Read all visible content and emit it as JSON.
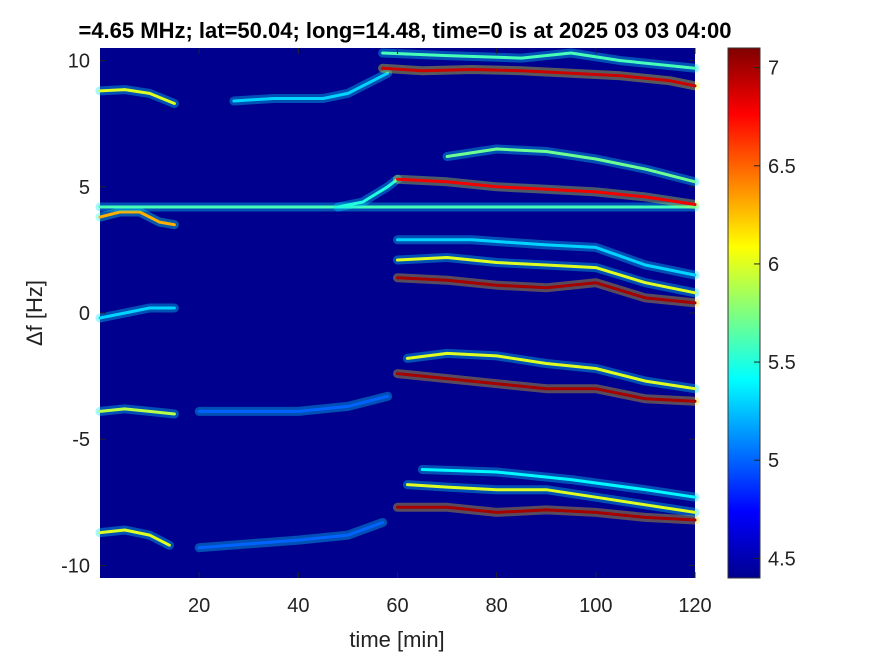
{
  "chart_data": {
    "type": "heatmap",
    "title": "=4.65 MHz;  lat=50.04; long=14.48, time=0 is at 2025 03 03 04:00",
    "xlabel": "time [min]",
    "ylabel": "Δf [Hz]",
    "xlim": [
      0,
      120
    ],
    "ylim": [
      -10.5,
      10.5
    ],
    "xticks": [
      20,
      40,
      60,
      80,
      100,
      120
    ],
    "yticks": [
      -10,
      -5,
      0,
      5,
      10
    ],
    "colorbar": {
      "clim": [
        4.4,
        7.1
      ],
      "ticks": [
        4.5,
        5,
        5.5,
        6,
        6.5,
        7
      ],
      "colormap": "jet"
    },
    "background_level": 4.5,
    "traces": [
      {
        "points": [
          [
            0,
            8.8
          ],
          [
            5,
            8.85
          ],
          [
            10,
            8.7
          ],
          [
            15,
            8.3
          ]
        ],
        "level": 6.0
      },
      {
        "points": [
          [
            27,
            8.4
          ],
          [
            35,
            8.5
          ],
          [
            45,
            8.5
          ],
          [
            50,
            8.7
          ],
          [
            55,
            9.2
          ],
          [
            58,
            9.5
          ]
        ],
        "level": 5.3
      },
      {
        "points": [
          [
            57,
            9.7
          ],
          [
            65,
            9.6
          ],
          [
            75,
            9.65
          ],
          [
            85,
            9.6
          ],
          [
            95,
            9.5
          ],
          [
            105,
            9.4
          ],
          [
            115,
            9.2
          ],
          [
            120,
            9.0
          ]
        ],
        "level": 6.9
      },
      {
        "points": [
          [
            57,
            10.3
          ],
          [
            70,
            10.2
          ],
          [
            85,
            10.1
          ],
          [
            95,
            10.3
          ],
          [
            105,
            10.0
          ],
          [
            120,
            9.7
          ]
        ],
        "level": 5.6
      },
      {
        "points": [
          [
            0,
            3.8
          ],
          [
            4,
            4.0
          ],
          [
            8,
            4.0
          ],
          [
            12,
            3.6
          ],
          [
            15,
            3.5
          ]
        ],
        "level": 6.3
      },
      {
        "points": [
          [
            0,
            4.2
          ],
          [
            120,
            4.2
          ]
        ],
        "level": 5.6
      },
      {
        "points": [
          [
            48,
            4.2
          ],
          [
            53,
            4.4
          ],
          [
            58,
            5.0
          ],
          [
            60,
            5.3
          ]
        ],
        "level": 5.5
      },
      {
        "points": [
          [
            60,
            5.3
          ],
          [
            70,
            5.2
          ],
          [
            80,
            5.0
          ],
          [
            90,
            4.9
          ],
          [
            100,
            4.8
          ],
          [
            110,
            4.6
          ],
          [
            120,
            4.3
          ]
        ],
        "level": 6.8
      },
      {
        "points": [
          [
            70,
            6.2
          ],
          [
            80,
            6.5
          ],
          [
            90,
            6.4
          ],
          [
            100,
            6.1
          ],
          [
            110,
            5.7
          ],
          [
            120,
            5.2
          ]
        ],
        "level": 5.7
      },
      {
        "points": [
          [
            0,
            -0.2
          ],
          [
            5,
            0.0
          ],
          [
            10,
            0.2
          ],
          [
            15,
            0.2
          ]
        ],
        "level": 5.3
      },
      {
        "points": [
          [
            60,
            1.4
          ],
          [
            70,
            1.3
          ],
          [
            80,
            1.1
          ],
          [
            90,
            1.0
          ],
          [
            100,
            1.2
          ],
          [
            105,
            0.9
          ],
          [
            110,
            0.6
          ],
          [
            120,
            0.4
          ]
        ],
        "level": 7.0
      },
      {
        "points": [
          [
            60,
            2.1
          ],
          [
            70,
            2.2
          ],
          [
            80,
            2.0
          ],
          [
            90,
            1.9
          ],
          [
            100,
            1.8
          ],
          [
            110,
            1.2
          ],
          [
            120,
            0.8
          ]
        ],
        "level": 6.0
      },
      {
        "points": [
          [
            60,
            2.9
          ],
          [
            75,
            2.9
          ],
          [
            90,
            2.7
          ],
          [
            100,
            2.6
          ],
          [
            110,
            1.9
          ],
          [
            120,
            1.5
          ]
        ],
        "level": 5.3
      },
      {
        "points": [
          [
            0,
            -3.9
          ],
          [
            5,
            -3.8
          ],
          [
            10,
            -3.9
          ],
          [
            15,
            -4.0
          ]
        ],
        "level": 5.9
      },
      {
        "points": [
          [
            20,
            -3.9
          ],
          [
            40,
            -3.9
          ],
          [
            50,
            -3.7
          ],
          [
            58,
            -3.3
          ]
        ],
        "level": 5.0
      },
      {
        "points": [
          [
            60,
            -2.4
          ],
          [
            70,
            -2.6
          ],
          [
            80,
            -2.8
          ],
          [
            90,
            -3.0
          ],
          [
            100,
            -3.0
          ],
          [
            110,
            -3.4
          ],
          [
            120,
            -3.5
          ]
        ],
        "level": 7.0
      },
      {
        "points": [
          [
            62,
            -1.8
          ],
          [
            70,
            -1.6
          ],
          [
            80,
            -1.7
          ],
          [
            90,
            -2.0
          ],
          [
            100,
            -2.2
          ],
          [
            110,
            -2.7
          ],
          [
            120,
            -3.0
          ]
        ],
        "level": 6.0
      },
      {
        "points": [
          [
            0,
            -8.7
          ],
          [
            5,
            -8.6
          ],
          [
            10,
            -8.8
          ],
          [
            14,
            -9.2
          ]
        ],
        "level": 6.0
      },
      {
        "points": [
          [
            20,
            -9.3
          ],
          [
            40,
            -9.0
          ],
          [
            50,
            -8.8
          ],
          [
            57,
            -8.3
          ]
        ],
        "level": 5.0
      },
      {
        "points": [
          [
            60,
            -7.7
          ],
          [
            70,
            -7.7
          ],
          [
            80,
            -7.9
          ],
          [
            90,
            -7.8
          ],
          [
            100,
            -7.9
          ],
          [
            110,
            -8.1
          ],
          [
            120,
            -8.2
          ]
        ],
        "level": 7.0
      },
      {
        "points": [
          [
            62,
            -6.8
          ],
          [
            70,
            -6.9
          ],
          [
            80,
            -7.0
          ],
          [
            90,
            -7.0
          ],
          [
            100,
            -7.3
          ],
          [
            110,
            -7.6
          ],
          [
            120,
            -7.9
          ]
        ],
        "level": 6.0
      },
      {
        "points": [
          [
            65,
            -6.2
          ],
          [
            80,
            -6.3
          ],
          [
            95,
            -6.6
          ],
          [
            110,
            -7.0
          ],
          [
            120,
            -7.3
          ]
        ],
        "level": 5.4
      }
    ]
  }
}
